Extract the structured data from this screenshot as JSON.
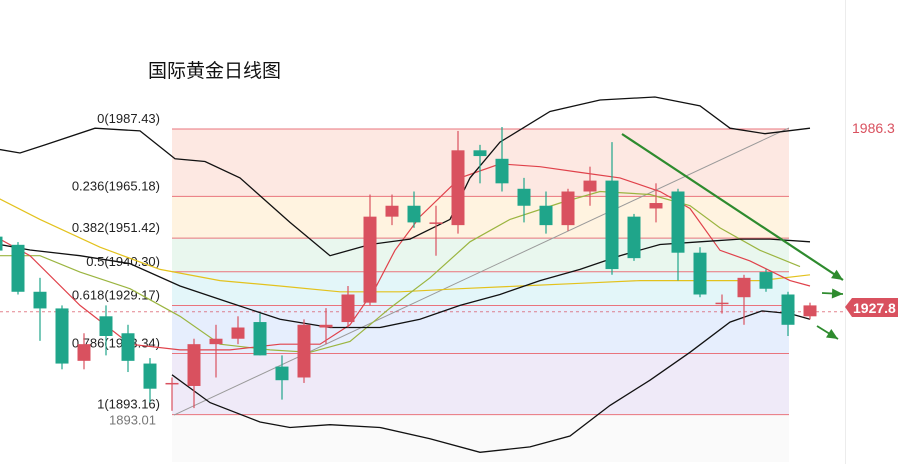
{
  "title": "国际黄金日线图",
  "colors": {
    "up": "#d9515f",
    "down": "#1fa58a",
    "bollinger": "#111111",
    "ma_red": "#e0424b",
    "ma_olive": "#9bb540",
    "ma_yellow": "#e3c21d",
    "arrow": "#2e8b2e",
    "price_tag_bg": "#d9515f",
    "fib_line": "#e9747d",
    "fib_text": "#222222",
    "right_label": "#d9515f",
    "low_label": "#777777"
  },
  "fib_zone_colors": [
    "#fde8e2",
    "#fff3e0",
    "#e9f7ee",
    "#e3f6f9",
    "#e6eefd",
    "#efeaf8"
  ],
  "chart_data": {
    "type": "candlestick",
    "ylim": [
      1877.5,
      1998.0
    ],
    "fibonacci": [
      {
        "ratio": "0",
        "price": 1987.43,
        "label": "0(1987.43)"
      },
      {
        "ratio": "0.236",
        "price": 1965.18,
        "label": "0.236(1965.18)"
      },
      {
        "ratio": "0.382",
        "price": 1951.42,
        "label": "0.382(1951.42)"
      },
      {
        "ratio": "0.5",
        "price": 1940.3,
        "label": "0.5(1940.30)"
      },
      {
        "ratio": "0.618",
        "price": 1929.17,
        "label": "0.618(1929.17)"
      },
      {
        "ratio": "0.786",
        "price": 1913.34,
        "label": "0.786(1913.34)"
      },
      {
        "ratio": "1",
        "price": 1893.16,
        "label": "1(1893.16)"
      }
    ],
    "low_label": "1893.01",
    "high_label": "1986.3",
    "current_price": "1927.8",
    "candles": [
      {
        "o": 1951.9,
        "c": 1947.3,
        "h": 1953.8,
        "l": 1944.5
      },
      {
        "o": 1949.2,
        "c": 1933.7,
        "h": 1950.1,
        "l": 1932.8
      },
      {
        "o": 1933.7,
        "c": 1928.2,
        "h": 1938.3,
        "l": 1917.5
      },
      {
        "o": 1928.2,
        "c": 1910.0,
        "h": 1929.2,
        "l": 1908.1
      },
      {
        "o": 1910.9,
        "c": 1916.4,
        "h": 1920.0,
        "l": 1908.1
      },
      {
        "o": 1925.6,
        "c": 1919.1,
        "h": 1929.2,
        "l": 1912.7
      },
      {
        "o": 1920.0,
        "c": 1910.9,
        "h": 1922.8,
        "l": 1907.2
      },
      {
        "o": 1910.0,
        "c": 1901.7,
        "h": 1911.8,
        "l": 1897.1
      },
      {
        "o": 1903.6,
        "c": 1903.6,
        "h": 1905.4,
        "l": 1894.4
      },
      {
        "o": 1902.6,
        "c": 1916.4,
        "h": 1918.2,
        "l": 1895.3
      },
      {
        "o": 1916.4,
        "c": 1918.2,
        "h": 1922.8,
        "l": 1905.4
      },
      {
        "o": 1918.2,
        "c": 1921.9,
        "h": 1925.6,
        "l": 1916.4
      },
      {
        "o": 1923.7,
        "c": 1912.7,
        "h": 1926.5,
        "l": 1912.7
      },
      {
        "o": 1909.0,
        "c": 1904.5,
        "h": 1912.7,
        "l": 1898.1
      },
      {
        "o": 1905.4,
        "c": 1922.8,
        "h": 1924.6,
        "l": 1903.6
      },
      {
        "o": 1921.9,
        "c": 1922.8,
        "h": 1928.3,
        "l": 1916.4
      },
      {
        "o": 1923.7,
        "c": 1932.8,
        "h": 1935.6,
        "l": 1921.9
      },
      {
        "o": 1930.1,
        "c": 1958.5,
        "h": 1965.8,
        "l": 1929.2
      },
      {
        "o": 1958.5,
        "c": 1962.1,
        "h": 1965.8,
        "l": 1955.7
      },
      {
        "o": 1962.1,
        "c": 1956.6,
        "h": 1966.8,
        "l": 1954.8
      },
      {
        "o": 1956.6,
        "c": 1956.6,
        "h": 1962.1,
        "l": 1945.6
      },
      {
        "o": 1955.7,
        "c": 1980.4,
        "h": 1986.8,
        "l": 1952.9
      },
      {
        "o": 1980.4,
        "c": 1978.5,
        "h": 1982.2,
        "l": 1969.5
      },
      {
        "o": 1977.6,
        "c": 1969.5,
        "h": 1988.1,
        "l": 1966.8
      },
      {
        "o": 1967.7,
        "c": 1962.1,
        "h": 1971.3,
        "l": 1956.6
      },
      {
        "o": 1962.1,
        "c": 1955.7,
        "h": 1966.8,
        "l": 1952.9
      },
      {
        "o": 1955.7,
        "c": 1966.8,
        "h": 1967.7,
        "l": 1953.8
      },
      {
        "o": 1966.8,
        "c": 1970.4,
        "h": 1975.0,
        "l": 1962.1
      },
      {
        "o": 1970.4,
        "c": 1941.2,
        "h": 1983.1,
        "l": 1939.3
      },
      {
        "o": 1958.5,
        "c": 1944.8,
        "h": 1959.4,
        "l": 1943.9
      },
      {
        "o": 1961.2,
        "c": 1963.0,
        "h": 1969.5,
        "l": 1956.6
      },
      {
        "o": 1966.8,
        "c": 1946.6,
        "h": 1967.7,
        "l": 1937.4
      },
      {
        "o": 1946.6,
        "c": 1932.8,
        "h": 1948.4,
        "l": 1931.9
      },
      {
        "o": 1930.1,
        "c": 1930.1,
        "h": 1932.8,
        "l": 1926.5
      },
      {
        "o": 1931.9,
        "c": 1938.3,
        "h": 1939.3,
        "l": 1922.8
      },
      {
        "o": 1940.2,
        "c": 1934.7,
        "h": 1941.1,
        "l": 1933.7
      },
      {
        "o": 1932.8,
        "c": 1922.8,
        "h": 1933.7,
        "l": 1919.1
      },
      {
        "o": 1925.6,
        "c": 1929.2,
        "h": 1930.1,
        "l": 1924.6
      }
    ],
    "bollinger_upper": [
      [
        -15,
        1981.5
      ],
      [
        20,
        1979.5
      ],
      [
        45,
        1982.2
      ],
      [
        95,
        1987.7
      ],
      [
        140,
        1986.8
      ],
      [
        175,
        1977.6
      ],
      [
        205,
        1976.7
      ],
      [
        240,
        1971.3
      ],
      [
        290,
        1956.6
      ],
      [
        330,
        1945.6
      ],
      [
        370,
        1949.3
      ],
      [
        410,
        1951.1
      ],
      [
        450,
        1957.6
      ],
      [
        470,
        1971.3
      ],
      [
        500,
        1983.1
      ],
      [
        550,
        1993.2
      ],
      [
        600,
        1997.0
      ],
      [
        655,
        1998.0
      ],
      [
        700,
        1995.1
      ],
      [
        730,
        1987.7
      ],
      [
        765,
        1985.9
      ],
      [
        810,
        1987.7
      ]
    ],
    "bollinger_mid": [
      [
        -15,
        1950.2
      ],
      [
        30,
        1947.5
      ],
      [
        80,
        1945.6
      ],
      [
        130,
        1943.0
      ],
      [
        180,
        1935.6
      ],
      [
        230,
        1930.1
      ],
      [
        280,
        1924.6
      ],
      [
        330,
        1921.9
      ],
      [
        380,
        1921.9
      ],
      [
        420,
        1924.6
      ],
      [
        460,
        1929.2
      ],
      [
        500,
        1932.8
      ],
      [
        540,
        1937.4
      ],
      [
        580,
        1941.1
      ],
      [
        620,
        1945.6
      ],
      [
        660,
        1949.3
      ],
      [
        700,
        1950.2
      ],
      [
        740,
        1951.1
      ],
      [
        770,
        1951.1
      ],
      [
        810,
        1950.2
      ]
    ],
    "bollinger_lower": [
      [
        172,
        1906.3
      ],
      [
        210,
        1897.1
      ],
      [
        260,
        1890.7
      ],
      [
        290,
        1888.9
      ],
      [
        330,
        1889.8
      ],
      [
        380,
        1888.9
      ],
      [
        430,
        1885.2
      ],
      [
        480,
        1880.7
      ],
      [
        530,
        1882.5
      ],
      [
        570,
        1886.1
      ],
      [
        610,
        1896.2
      ],
      [
        650,
        1904.5
      ],
      [
        690,
        1913.7
      ],
      [
        730,
        1923.7
      ],
      [
        762,
        1927.4
      ],
      [
        790,
        1926.5
      ],
      [
        810,
        1924.6
      ]
    ],
    "ma_red": [
      [
        -15,
        1953.8
      ],
      [
        30,
        1945.6
      ],
      [
        80,
        1929.2
      ],
      [
        130,
        1916.4
      ],
      [
        180,
        1914.5
      ],
      [
        230,
        1914.5
      ],
      [
        280,
        1916.4
      ],
      [
        320,
        1916.4
      ],
      [
        350,
        1922.8
      ],
      [
        375,
        1934.7
      ],
      [
        395,
        1947.4
      ],
      [
        420,
        1958.5
      ],
      [
        460,
        1971.3
      ],
      [
        500,
        1975.9
      ],
      [
        540,
        1975.0
      ],
      [
        580,
        1973.1
      ],
      [
        620,
        1971.3
      ],
      [
        660,
        1966.8
      ],
      [
        690,
        1961.2
      ],
      [
        720,
        1947.4
      ],
      [
        750,
        1943.9
      ],
      [
        790,
        1937.4
      ],
      [
        810,
        1935.6
      ]
    ],
    "ma_olive": [
      [
        0,
        1945.6
      ],
      [
        40,
        1945.6
      ],
      [
        80,
        1940.2
      ],
      [
        130,
        1934.7
      ],
      [
        180,
        1925.6
      ],
      [
        220,
        1916.4
      ],
      [
        270,
        1914.5
      ],
      [
        310,
        1913.7
      ],
      [
        350,
        1917.3
      ],
      [
        390,
        1928.3
      ],
      [
        430,
        1938.3
      ],
      [
        470,
        1950.2
      ],
      [
        510,
        1957.6
      ],
      [
        560,
        1963.0
      ],
      [
        600,
        1966.8
      ],
      [
        650,
        1965.8
      ],
      [
        690,
        1962.1
      ],
      [
        720,
        1954.8
      ],
      [
        760,
        1947.4
      ],
      [
        800,
        1942.0
      ]
    ],
    "ma_yellow": [
      [
        -15,
        1966.8
      ],
      [
        40,
        1957.6
      ],
      [
        100,
        1948.4
      ],
      [
        160,
        1941.1
      ],
      [
        220,
        1937.4
      ],
      [
        280,
        1935.6
      ],
      [
        340,
        1933.7
      ],
      [
        400,
        1933.7
      ],
      [
        460,
        1934.7
      ],
      [
        520,
        1935.6
      ],
      [
        580,
        1936.5
      ],
      [
        640,
        1937.4
      ],
      [
        700,
        1937.4
      ],
      [
        760,
        1937.4
      ],
      [
        810,
        1939.3
      ]
    ]
  }
}
